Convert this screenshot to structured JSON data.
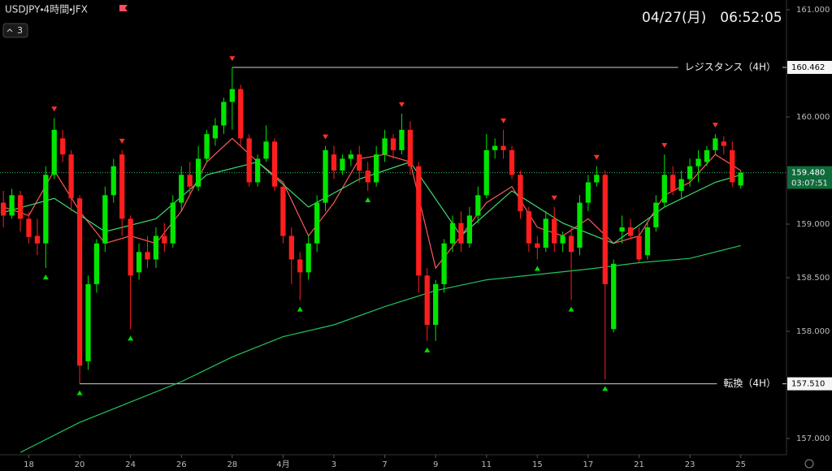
{
  "header": {
    "symbol": "USDJPY・4時間・JFX",
    "collapsed_count": "3",
    "datetime": "04/27(月)　06:52:05"
  },
  "chart_data": {
    "type": "candlestick",
    "xlim": [
      -0.4,
      92.4
    ],
    "xticks": [
      {
        "value": 3,
        "label": "18"
      },
      {
        "value": 9,
        "label": "20"
      },
      {
        "value": 15,
        "label": "24"
      },
      {
        "value": 21,
        "label": "26"
      },
      {
        "value": 27,
        "label": "28"
      },
      {
        "value": 33,
        "label": "4月"
      },
      {
        "value": 39,
        "label": "3"
      },
      {
        "value": 45,
        "label": "7"
      },
      {
        "value": 51,
        "label": "9"
      },
      {
        "value": 57,
        "label": "11"
      },
      {
        "value": 63,
        "label": "15"
      },
      {
        "value": 69,
        "label": "17"
      },
      {
        "value": 75,
        "label": "21"
      },
      {
        "value": 81,
        "label": "23"
      },
      {
        "value": 87,
        "label": "25"
      }
    ],
    "ylim": [
      156.848,
      161.091
    ],
    "yticks": [
      {
        "value": 161,
        "label": "161.000"
      },
      {
        "value": 160,
        "label": "160.000"
      },
      {
        "value": 159,
        "label": "159.000"
      },
      {
        "value": 158.5,
        "label": "158.500"
      },
      {
        "value": 158,
        "label": "158.000"
      },
      {
        "value": 157,
        "label": "157.000"
      }
    ],
    "grid": false,
    "up_color": "#00e600",
    "down_color": "#ff1e1e",
    "open": [
      159.2,
      159.08,
      159.27,
      159.05,
      158.89,
      158.82,
      159.46,
      159.8,
      159.65,
      159.24,
      157.72,
      158.44,
      158.82,
      159.27,
      159.65,
      159.05,
      158.55,
      158.74,
      158.67,
      158.89,
      158.82,
      159.2,
      159.46,
      159.35,
      159.61,
      159.8,
      159.92,
      160.14,
      160.26,
      159.8,
      159.39,
      159.61,
      159.77,
      159.35,
      158.89,
      158.67,
      158.55,
      158.82,
      159.2,
      159.65,
      159.5,
      159.61,
      159.65,
      159.5,
      159.39,
      159.65,
      159.8,
      159.69,
      159.88,
      159.54,
      158.52,
      158.06,
      158.44,
      158.82,
      159.01,
      158.82,
      159.08,
      159.27,
      159.69,
      159.73,
      159.69,
      159.46,
      159.12,
      158.82,
      158.78,
      159.05,
      158.82,
      158.89,
      158.78,
      159.2,
      159.39,
      159.46,
      158.02,
      158.93,
      158.97,
      158.89,
      158.71,
      158.97,
      159.2,
      159.46,
      159.31,
      159.42,
      159.54,
      159.58,
      159.69,
      159.77,
      159.69,
      159.36
    ],
    "high": [
      159.31,
      159.33,
      159.31,
      159.11,
      159.05,
      159.54,
      159.99,
      159.88,
      159.69,
      159.27,
      158.52,
      158.86,
      159.35,
      159.61,
      159.69,
      159.08,
      158.82,
      158.89,
      158.97,
      159.01,
      159.27,
      159.54,
      159.58,
      159.73,
      159.88,
      159.99,
      160.18,
      160.46,
      160.3,
      159.84,
      159.65,
      159.92,
      159.8,
      159.39,
      158.97,
      158.74,
      158.89,
      159.27,
      159.73,
      159.73,
      159.65,
      159.69,
      159.73,
      159.58,
      159.73,
      159.88,
      159.84,
      160.03,
      159.96,
      159.58,
      158.59,
      158.48,
      158.86,
      159.08,
      159.12,
      159.16,
      159.35,
      159.84,
      159.8,
      159.88,
      159.73,
      159.5,
      159.16,
      158.89,
      159.12,
      159.16,
      158.93,
      158.97,
      159.27,
      159.46,
      159.54,
      159.5,
      158.67,
      159.08,
      159.05,
      158.97,
      159.01,
      159.27,
      159.65,
      159.54,
      159.5,
      159.61,
      159.69,
      159.73,
      159.84,
      159.82,
      159.77,
      159.5
    ],
    "low": [
      158.97,
      159.05,
      158.93,
      158.82,
      158.71,
      158.59,
      159.42,
      159.58,
      159.12,
      157.51,
      157.64,
      158.36,
      158.74,
      159.2,
      158.89,
      158.02,
      158.48,
      158.59,
      158.59,
      158.74,
      158.78,
      159.12,
      159.27,
      159.31,
      159.58,
      159.73,
      159.84,
      159.88,
      159.73,
      159.35,
      159.35,
      159.58,
      159.31,
      158.82,
      158.44,
      158.29,
      158.48,
      158.74,
      159.12,
      159.42,
      159.46,
      159.54,
      159.39,
      159.31,
      159.35,
      159.58,
      159.61,
      159.65,
      159.46,
      158.36,
      157.91,
      157.91,
      158.36,
      158.74,
      158.74,
      158.78,
      159.01,
      159.24,
      159.61,
      159.61,
      159.42,
      159.05,
      158.74,
      158.67,
      158.74,
      158.74,
      158.74,
      158.29,
      158.71,
      159.12,
      159.35,
      157.55,
      157.99,
      158.82,
      158.86,
      158.63,
      158.67,
      158.93,
      159.16,
      159.27,
      159.24,
      159.35,
      159.39,
      159.54,
      159.65,
      159.65,
      159.35,
      159.33
    ],
    "close": [
      159.08,
      159.27,
      159.05,
      158.88,
      158.82,
      159.46,
      159.88,
      159.65,
      159.24,
      157.68,
      158.44,
      158.82,
      159.27,
      159.54,
      159.05,
      158.52,
      158.74,
      158.67,
      158.89,
      158.82,
      159.2,
      159.46,
      159.35,
      159.61,
      159.84,
      159.92,
      160.14,
      160.26,
      159.8,
      159.39,
      159.61,
      159.77,
      159.35,
      158.89,
      158.67,
      158.55,
      158.82,
      159.2,
      159.69,
      159.5,
      159.61,
      159.65,
      159.5,
      159.39,
      159.65,
      159.8,
      159.69,
      159.88,
      159.54,
      158.52,
      158.06,
      158.44,
      158.82,
      159.01,
      158.82,
      159.08,
      159.27,
      159.69,
      159.73,
      159.69,
      159.46,
      159.12,
      158.82,
      158.78,
      159.05,
      158.82,
      158.89,
      158.74,
      159.2,
      159.39,
      159.46,
      158.44,
      158.63,
      158.97,
      158.89,
      158.67,
      158.97,
      159.2,
      159.46,
      159.31,
      159.42,
      159.54,
      159.61,
      159.69,
      159.8,
      159.73,
      159.39,
      159.48
    ],
    "lines": [
      {
        "color": "#ff5a5a",
        "x": [
          0,
          3,
          6,
          9,
          12,
          15,
          18,
          21,
          24,
          27,
          30,
          33,
          36,
          39,
          42,
          45,
          48,
          51,
          54,
          57,
          60,
          63,
          66,
          69,
          72,
          75,
          78,
          81,
          84,
          87
        ],
        "values": [
          159.16,
          159.08,
          159.5,
          159.12,
          158.82,
          158.89,
          158.82,
          159.12,
          159.58,
          159.8,
          159.58,
          159.39,
          158.89,
          159.2,
          159.61,
          159.65,
          159.58,
          158.59,
          158.89,
          159.2,
          159.35,
          158.97,
          158.89,
          159.05,
          158.82,
          158.89,
          159.27,
          159.39,
          159.65,
          159.5
        ]
      },
      {
        "color": "#3ddc6e",
        "x": [
          0,
          6,
          12,
          18,
          24,
          30,
          36,
          42,
          48,
          54,
          60,
          66,
          72,
          78,
          84,
          87
        ],
        "values": [
          159.11,
          159.24,
          158.93,
          159.05,
          159.46,
          159.58,
          159.16,
          159.42,
          159.58,
          158.89,
          159.31,
          159.01,
          158.82,
          159.16,
          159.39,
          159.46
        ]
      },
      {
        "color": "#22c55e",
        "x": [
          2,
          9,
          15,
          21,
          27,
          33,
          39,
          45,
          51,
          57,
          63,
          69,
          75,
          81,
          87
        ],
        "values": [
          156.87,
          157.15,
          157.34,
          157.53,
          157.76,
          157.95,
          158.06,
          158.23,
          158.38,
          158.48,
          158.53,
          158.58,
          158.64,
          158.68,
          158.8
        ]
      }
    ],
    "sell_signals": [
      6,
      14,
      27,
      38,
      47,
      59,
      65,
      70,
      78,
      84
    ],
    "buy_signals": [
      5,
      9,
      15,
      35,
      43,
      50,
      63,
      67,
      71
    ],
    "levels": [
      {
        "label": "レジスタンス（4H）",
        "value": 160.462,
        "value_label": "160.462",
        "from": 27
      },
      {
        "label": "転換（4H）",
        "value": 157.51,
        "value_label": "157.510",
        "from": 9
      }
    ],
    "current": {
      "value": 159.48,
      "value_label": "159.480",
      "countdown": "03:07:51"
    }
  }
}
